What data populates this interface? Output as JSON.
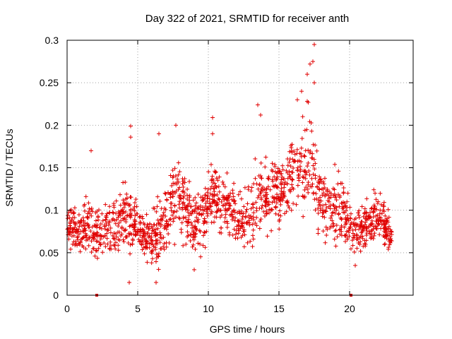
{
  "chart_data": {
    "type": "scatter",
    "title": "Day 322 of 2021, SRMTID for receiver anth",
    "xlabel": "GPS time / hours",
    "ylabel": "SRMTID / TECUs",
    "xlim": [
      0,
      24.5
    ],
    "ylim": [
      0,
      0.3
    ],
    "xticks": [
      0,
      5,
      10,
      15,
      20
    ],
    "xtick_labels": [
      "0",
      "5",
      "10",
      "15",
      "20"
    ],
    "yticks": [
      0,
      0.05,
      0.1,
      0.15,
      0.2,
      0.25,
      0.3
    ],
    "ytick_labels": [
      "0",
      "0.05",
      "0.1",
      "0.15",
      "0.2",
      "0.25",
      "0.3"
    ],
    "grid": true,
    "marker": "plus",
    "color": "#e00000",
    "zero_markers_x": [
      2.1,
      20.1
    ],
    "series": [
      {
        "name": "SRMTID",
        "envelope": {
          "x": [
            0.0,
            0.5,
            1.0,
            1.5,
            2.0,
            2.5,
            3.0,
            3.5,
            4.0,
            4.5,
            5.0,
            5.5,
            6.0,
            6.5,
            7.0,
            7.5,
            8.0,
            8.5,
            9.0,
            9.5,
            10.0,
            10.5,
            11.0,
            11.5,
            12.0,
            12.5,
            13.0,
            13.5,
            14.0,
            14.5,
            15.0,
            15.5,
            16.0,
            16.5,
            17.0,
            17.5,
            18.0,
            18.5,
            19.0,
            19.5,
            20.0,
            20.5,
            21.0,
            21.5,
            22.0,
            22.5,
            23.0
          ],
          "low": [
            0.045,
            0.045,
            0.04,
            0.04,
            0.03,
            0.04,
            0.03,
            0.04,
            0.045,
            0.035,
            0.03,
            0.03,
            0.025,
            0.02,
            0.03,
            0.045,
            0.05,
            0.045,
            0.04,
            0.04,
            0.05,
            0.05,
            0.05,
            0.05,
            0.045,
            0.04,
            0.04,
            0.045,
            0.06,
            0.065,
            0.07,
            0.075,
            0.08,
            0.08,
            0.08,
            0.07,
            0.06,
            0.05,
            0.045,
            0.05,
            0.04,
            0.035,
            0.04,
            0.045,
            0.05,
            0.045,
            0.035
          ],
          "high": [
            0.115,
            0.115,
            0.11,
            0.125,
            0.11,
            0.12,
            0.125,
            0.13,
            0.14,
            0.15,
            0.115,
            0.105,
            0.11,
            0.13,
            0.15,
            0.185,
            0.17,
            0.15,
            0.135,
            0.14,
            0.165,
            0.175,
            0.16,
            0.15,
            0.14,
            0.13,
            0.15,
            0.185,
            0.175,
            0.18,
            0.17,
            0.18,
            0.2,
            0.22,
            0.24,
            0.21,
            0.17,
            0.15,
            0.16,
            0.155,
            0.12,
            0.11,
            0.12,
            0.13,
            0.14,
            0.12,
            0.09
          ],
          "outliers": [
            [
              1.7,
              0.17
            ],
            [
              4.5,
              0.199
            ],
            [
              4.5,
              0.186
            ],
            [
              6.5,
              0.19
            ],
            [
              7.7,
              0.2
            ],
            [
              10.3,
              0.209
            ],
            [
              10.3,
              0.19
            ],
            [
              13.5,
              0.224
            ],
            [
              13.7,
              0.212
            ],
            [
              16.3,
              0.23
            ],
            [
              16.6,
              0.24
            ],
            [
              17.0,
              0.26
            ],
            [
              17.2,
              0.272
            ],
            [
              17.5,
              0.295
            ],
            [
              17.4,
              0.275
            ],
            [
              17.5,
              0.25
            ],
            [
              4.4,
              0.015
            ],
            [
              6.3,
              0.015
            ],
            [
              9.0,
              0.03
            ],
            [
              20.4,
              0.035
            ]
          ]
        },
        "count": 1600
      }
    ]
  }
}
